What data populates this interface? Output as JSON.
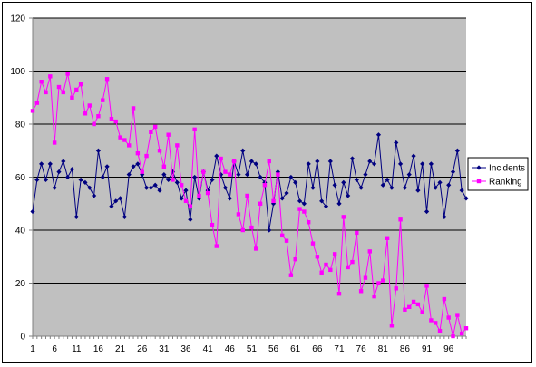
{
  "chart_data": {
    "type": "line",
    "title": "",
    "xlabel": "",
    "ylabel": "",
    "ylim": [
      0,
      120
    ],
    "yticks": [
      0,
      20,
      40,
      60,
      80,
      100,
      120
    ],
    "xlim": [
      1,
      100
    ],
    "xtick_labels": [
      "1",
      "6",
      "11",
      "16",
      "21",
      "26",
      "31",
      "36",
      "41",
      "46",
      "51",
      "56",
      "61",
      "66",
      "71",
      "76",
      "81",
      "86",
      "91",
      "96"
    ],
    "grid": true,
    "plot_background": "#c0c0c0",
    "legend_position": "right",
    "x": [
      1,
      2,
      3,
      4,
      5,
      6,
      7,
      8,
      9,
      10,
      11,
      12,
      13,
      14,
      15,
      16,
      17,
      18,
      19,
      20,
      21,
      22,
      23,
      24,
      25,
      26,
      27,
      28,
      29,
      30,
      31,
      32,
      33,
      34,
      35,
      36,
      37,
      38,
      39,
      40,
      41,
      42,
      43,
      44,
      45,
      46,
      47,
      48,
      49,
      50,
      51,
      52,
      53,
      54,
      55,
      56,
      57,
      58,
      59,
      60,
      61,
      62,
      63,
      64,
      65,
      66,
      67,
      68,
      69,
      70,
      71,
      72,
      73,
      74,
      75,
      76,
      77,
      78,
      79,
      80,
      81,
      82,
      83,
      84,
      85,
      86,
      87,
      88,
      89,
      90,
      91,
      92,
      93,
      94,
      95,
      96,
      97,
      98,
      99,
      100
    ],
    "series": [
      {
        "name": "Incidents",
        "color": "#000080",
        "marker": "diamond",
        "values": [
          47,
          59,
          65,
          59,
          65,
          56,
          62,
          66,
          60,
          63,
          45,
          59,
          58,
          56,
          53,
          70,
          60,
          64,
          49,
          51,
          52,
          45,
          61,
          64,
          65,
          61,
          56,
          56,
          57,
          55,
          61,
          59,
          62,
          58,
          52,
          55,
          44,
          60,
          52,
          62,
          55,
          59,
          68,
          61,
          56,
          52,
          66,
          61,
          70,
          61,
          66,
          65,
          60,
          58,
          40,
          50,
          62,
          52,
          54,
          60,
          58,
          51,
          50,
          65,
          56,
          66,
          51,
          49,
          66,
          57,
          50,
          58,
          53,
          67,
          59,
          56,
          61,
          66,
          65,
          76,
          57,
          59,
          56,
          73,
          65,
          56,
          61,
          68,
          55,
          65,
          47,
          65,
          56,
          58,
          45,
          57,
          62,
          70,
          55,
          52
        ]
      },
      {
        "name": "Ranking",
        "color": "#ff00ff",
        "marker": "square",
        "values": [
          85,
          88,
          96,
          92,
          98,
          73,
          94,
          92,
          99,
          90,
          93,
          95,
          84,
          87,
          80,
          83,
          89,
          97,
          82,
          81,
          75,
          74,
          72,
          86,
          69,
          62,
          68,
          77,
          79,
          70,
          64,
          76,
          59,
          72,
          57,
          51,
          49,
          78,
          53,
          62,
          54,
          42,
          34,
          67,
          62,
          61,
          66,
          46,
          40,
          53,
          41,
          33,
          50,
          57,
          66,
          51,
          61,
          38,
          36,
          23,
          29,
          48,
          47,
          43,
          35,
          30,
          24,
          27,
          25,
          31,
          16,
          45,
          26,
          28,
          39,
          17,
          22,
          32,
          15,
          20,
          21,
          37,
          4,
          18,
          44,
          10,
          11,
          13,
          12,
          9,
          19,
          6,
          5,
          2,
          14,
          7,
          0,
          8,
          1,
          3
        ]
      }
    ]
  }
}
